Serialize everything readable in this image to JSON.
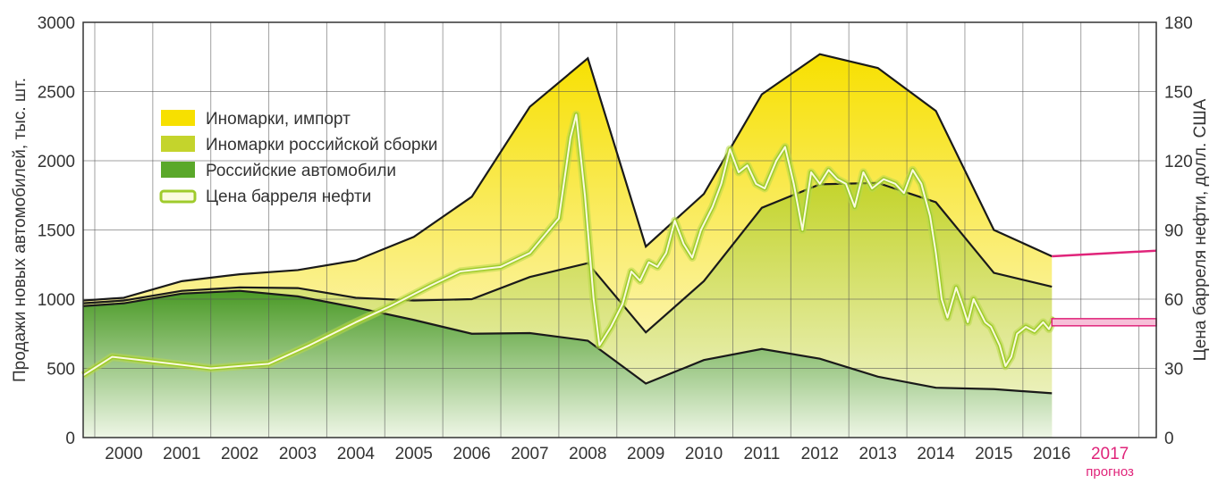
{
  "chart_data": {
    "type": "area",
    "ylabel": "Продажи новых автомобилей, тыс. шт.",
    "y2label": "Цена барреля нефти, долл. США",
    "ylim": [
      0,
      3000
    ],
    "y2lim": [
      0,
      180
    ],
    "yticks": [
      0,
      500,
      1000,
      1500,
      2000,
      2500,
      3000
    ],
    "y2ticks": [
      0,
      30,
      60,
      90,
      120,
      150,
      180
    ],
    "x_categories": [
      "2000",
      "2001",
      "2002",
      "2003",
      "2004",
      "2005",
      "2006",
      "2007",
      "2008",
      "2009",
      "2010",
      "2011",
      "2012",
      "2013",
      "2014",
      "2015",
      "2016",
      "2017"
    ],
    "forecast": {
      "year": "2017",
      "label": "прогноз",
      "color": "#e0247a"
    },
    "grid": true,
    "legend_position": "top-left",
    "series": [
      {
        "name": "Российские автомобили",
        "color": "#5aa82a",
        "points": [
          [
            1999.3,
            950
          ],
          [
            2000,
            970
          ],
          [
            2001,
            1040
          ],
          [
            2002,
            1060
          ],
          [
            2003,
            1020
          ],
          [
            2004,
            940
          ],
          [
            2005,
            850
          ],
          [
            2006,
            750
          ],
          [
            2007,
            755
          ],
          [
            2008,
            700
          ],
          [
            2009,
            390
          ],
          [
            2010,
            560
          ],
          [
            2011,
            640
          ],
          [
            2012,
            570
          ],
          [
            2013,
            440
          ],
          [
            2014,
            360
          ],
          [
            2015,
            350
          ],
          [
            2016,
            320
          ]
        ]
      },
      {
        "name": "Иномарки российской сборки",
        "color": "#c4d42c",
        "points": [
          [
            1999.3,
            970
          ],
          [
            2000,
            990
          ],
          [
            2001,
            1060
          ],
          [
            2002,
            1085
          ],
          [
            2003,
            1080
          ],
          [
            2004,
            1010
          ],
          [
            2005,
            990
          ],
          [
            2006,
            1000
          ],
          [
            2007,
            1160
          ],
          [
            2008,
            1260
          ],
          [
            2009,
            760
          ],
          [
            2010,
            1130
          ],
          [
            2011,
            1660
          ],
          [
            2012,
            1830
          ],
          [
            2013,
            1840
          ],
          [
            2014,
            1700
          ],
          [
            2015,
            1190
          ],
          [
            2016,
            1090
          ]
        ]
      },
      {
        "name": "Иномарки, импорт",
        "color": "#f7e000",
        "points": [
          [
            1999.3,
            990
          ],
          [
            2000,
            1010
          ],
          [
            2001,
            1130
          ],
          [
            2002,
            1180
          ],
          [
            2003,
            1210
          ],
          [
            2004,
            1280
          ],
          [
            2005,
            1450
          ],
          [
            2006,
            1740
          ],
          [
            2007,
            2390
          ],
          [
            2008,
            2740
          ],
          [
            2009,
            1380
          ],
          [
            2010,
            1760
          ],
          [
            2011,
            2480
          ],
          [
            2012,
            2770
          ],
          [
            2013,
            2670
          ],
          [
            2014,
            2360
          ],
          [
            2015,
            1500
          ],
          [
            2016,
            1310
          ]
        ]
      },
      {
        "name": "Цена барреля нефти",
        "color": "#c8e064",
        "axis": "right",
        "points": [
          [
            1999.3,
            27
          ],
          [
            1999.8,
            35
          ],
          [
            2000.5,
            33
          ],
          [
            2001.5,
            30
          ],
          [
            2002.5,
            32
          ],
          [
            2003.2,
            40
          ],
          [
            2004,
            50
          ],
          [
            2004.6,
            57
          ],
          [
            2005.3,
            66
          ],
          [
            2005.8,
            72
          ],
          [
            2006.5,
            74
          ],
          [
            2007,
            80
          ],
          [
            2007.5,
            95
          ],
          [
            2007.7,
            130
          ],
          [
            2007.8,
            140
          ],
          [
            2007.95,
            105
          ],
          [
            2008.1,
            60
          ],
          [
            2008.2,
            40
          ],
          [
            2008.4,
            48
          ],
          [
            2008.6,
            58
          ],
          [
            2008.75,
            72
          ],
          [
            2008.9,
            68
          ],
          [
            2009.05,
            76
          ],
          [
            2009.2,
            74
          ],
          [
            2009.35,
            80
          ],
          [
            2009.5,
            94
          ],
          [
            2009.65,
            84
          ],
          [
            2009.8,
            78
          ],
          [
            2009.95,
            90
          ],
          [
            2010.15,
            100
          ],
          [
            2010.3,
            110
          ],
          [
            2010.45,
            125
          ],
          [
            2010.6,
            115
          ],
          [
            2010.75,
            118
          ],
          [
            2010.9,
            110
          ],
          [
            2011.05,
            108
          ],
          [
            2011.25,
            120
          ],
          [
            2011.4,
            126
          ],
          [
            2011.55,
            110
          ],
          [
            2011.7,
            90
          ],
          [
            2011.85,
            115
          ],
          [
            2012,
            110
          ],
          [
            2012.15,
            116
          ],
          [
            2012.3,
            112
          ],
          [
            2012.45,
            110
          ],
          [
            2012.6,
            100
          ],
          [
            2012.75,
            115
          ],
          [
            2012.9,
            108
          ],
          [
            2013.1,
            112
          ],
          [
            2013.3,
            110
          ],
          [
            2013.45,
            106
          ],
          [
            2013.6,
            116
          ],
          [
            2013.75,
            110
          ],
          [
            2013.9,
            96
          ],
          [
            2014,
            80
          ],
          [
            2014.1,
            60
          ],
          [
            2014.2,
            52
          ],
          [
            2014.35,
            65
          ],
          [
            2014.45,
            58
          ],
          [
            2014.55,
            50
          ],
          [
            2014.65,
            60
          ],
          [
            2014.75,
            55
          ],
          [
            2014.85,
            50
          ],
          [
            2014.95,
            48
          ],
          [
            2015.1,
            40
          ],
          [
            2015.2,
            31
          ],
          [
            2015.3,
            35
          ],
          [
            2015.4,
            45
          ],
          [
            2015.55,
            48
          ],
          [
            2015.7,
            46
          ],
          [
            2015.85,
            50
          ],
          [
            2015.95,
            47
          ],
          [
            2016.05,
            52
          ]
        ]
      }
    ],
    "forecast_values": {
      "total_sales_2017": 1350,
      "oil_price_2017": 50
    }
  }
}
